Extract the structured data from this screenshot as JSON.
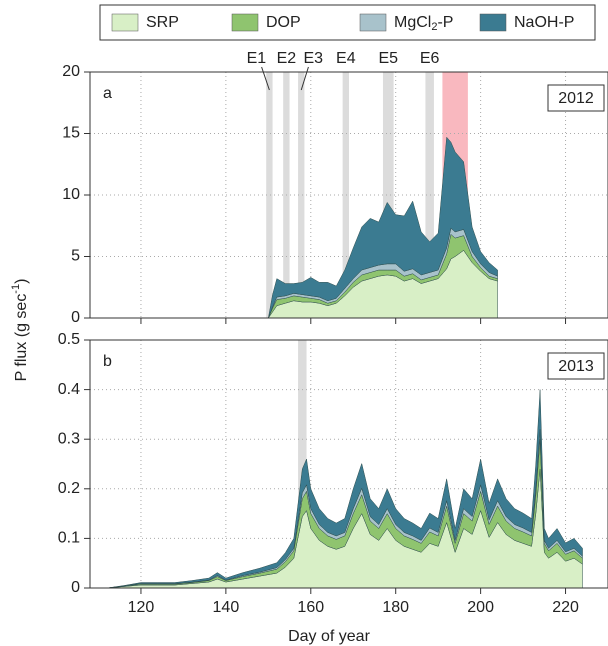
{
  "chart_data": [
    {
      "type": "stacked_area",
      "panel": "a",
      "year": "2012",
      "ylabel": "P flux (g sec-1)",
      "xlim": [
        108,
        230
      ],
      "xticks": [
        120,
        140,
        160,
        180,
        200,
        220
      ],
      "ylim": [
        0,
        20
      ],
      "yticks": [
        0,
        5,
        10,
        15,
        20
      ],
      "grid": true,
      "x": [
        130,
        140,
        150,
        151,
        152,
        154,
        156,
        158,
        160,
        162,
        164,
        166,
        168,
        170,
        172,
        174,
        176,
        178,
        180,
        182,
        184,
        186,
        188,
        190,
        192,
        193,
        194,
        196,
        198,
        200,
        202,
        204
      ],
      "series": [
        {
          "name": "SRP",
          "color": "#d8efc6",
          "values": [
            0,
            0,
            0,
            0.5,
            1,
            1.2,
            1.4,
            1.3,
            1.3,
            1.2,
            1.0,
            1.2,
            1.8,
            2.5,
            3.0,
            3.2,
            3.4,
            3.5,
            3.4,
            3.0,
            3.2,
            2.8,
            3.0,
            3.2,
            4.0,
            4.8,
            5.0,
            5.5,
            4.5,
            3.8,
            3.2,
            3.0
          ]
        },
        {
          "name": "DOP",
          "color": "#8fc46f",
          "values": [
            0,
            0,
            0,
            0.3,
            0.5,
            0.4,
            0.4,
            0.4,
            0.3,
            0.3,
            0.2,
            0.2,
            0.3,
            0.4,
            0.5,
            0.5,
            0.5,
            0.4,
            0.5,
            0.4,
            0.4,
            0.3,
            0.3,
            0.3,
            1.2,
            2.0,
            1.5,
            1.2,
            0.5,
            0.3,
            0.2,
            0.2
          ]
        },
        {
          "name": "MgCl2-P",
          "color": "#a8c2cb",
          "values": [
            0,
            0,
            0,
            0.1,
            0.2,
            0.2,
            0.2,
            0.2,
            0.2,
            0.2,
            0.2,
            0.2,
            0.3,
            0.3,
            0.4,
            0.4,
            0.4,
            0.5,
            0.5,
            0.4,
            0.4,
            0.4,
            0.4,
            0.4,
            0.5,
            0.5,
            0.5,
            0.5,
            0.4,
            0.3,
            0.3,
            0.2
          ]
        },
        {
          "name": "NaOH-P",
          "color": "#3b7b91",
          "values": [
            0,
            0,
            0,
            1.0,
            1.5,
            1.0,
            0.8,
            1.0,
            1.5,
            1.2,
            1.5,
            1.0,
            1.5,
            2.5,
            3.5,
            4.0,
            3.5,
            5.0,
            4.0,
            4.5,
            5.5,
            3.5,
            2.5,
            3.0,
            9.0,
            7.0,
            6.5,
            5.5,
            2.0,
            1.0,
            0.8,
            0.5
          ]
        }
      ],
      "bands": [
        {
          "label": "E1",
          "range": [
            149.5,
            151
          ],
          "color": "#dcdcdc"
        },
        {
          "label": "E2",
          "range": [
            153.5,
            155
          ],
          "color": "#dcdcdc"
        },
        {
          "label": "E3",
          "range": [
            157,
            158.5
          ],
          "color": "#dcdcdc"
        },
        {
          "label": "E4",
          "range": [
            167.5,
            169
          ],
          "color": "#dcdcdc"
        },
        {
          "label": "E5",
          "range": [
            177,
            179.5
          ],
          "color": "#dcdcdc"
        },
        {
          "label": "E6",
          "range": [
            187,
            189
          ],
          "color": "#dcdcdc"
        },
        {
          "range": [
            191,
            197
          ],
          "color": "#f9b8bf"
        }
      ]
    },
    {
      "type": "stacked_area",
      "panel": "b",
      "year": "2013",
      "xlabel": "Day of year",
      "xlim": [
        108,
        230
      ],
      "xticks": [
        120,
        140,
        160,
        180,
        200,
        220
      ],
      "ylim": [
        0,
        0.5
      ],
      "yticks": [
        0,
        0.1,
        0.2,
        0.3,
        0.4,
        0.5
      ],
      "grid": true,
      "x": [
        112,
        116,
        120,
        124,
        128,
        132,
        136,
        138,
        140,
        144,
        148,
        152,
        154,
        156,
        158,
        159,
        160,
        162,
        164,
        166,
        168,
        170,
        172,
        174,
        176,
        178,
        180,
        182,
        184,
        186,
        188,
        190,
        192,
        194,
        196,
        198,
        200,
        202,
        204,
        206,
        208,
        210,
        212,
        213,
        214,
        215,
        216,
        218,
        220,
        222,
        224
      ],
      "series": [
        {
          "color": "#d8efc6",
          "values": [
            0,
            0.003,
            0.006,
            0.006,
            0.006,
            0.009,
            0.012,
            0.018,
            0.012,
            0.018,
            0.024,
            0.03,
            0.042,
            0.06,
            0.144,
            0.156,
            0.12,
            0.096,
            0.084,
            0.078,
            0.084,
            0.12,
            0.15,
            0.108,
            0.096,
            0.12,
            0.096,
            0.084,
            0.078,
            0.072,
            0.09,
            0.084,
            0.132,
            0.072,
            0.12,
            0.108,
            0.156,
            0.102,
            0.132,
            0.108,
            0.096,
            0.09,
            0.084,
            0.15,
            0.24,
            0.072,
            0.06,
            0.072,
            0.054,
            0.06,
            0.048
          ]
        },
        {
          "color": "#8fc46f",
          "values": [
            0,
            0.001,
            0.002,
            0.002,
            0.002,
            0.002,
            0.003,
            0.005,
            0.003,
            0.005,
            0.006,
            0.008,
            0.011,
            0.015,
            0.036,
            0.039,
            0.03,
            0.024,
            0.021,
            0.02,
            0.021,
            0.03,
            0.038,
            0.027,
            0.024,
            0.03,
            0.024,
            0.021,
            0.02,
            0.018,
            0.023,
            0.021,
            0.033,
            0.018,
            0.03,
            0.027,
            0.039,
            0.026,
            0.033,
            0.027,
            0.024,
            0.023,
            0.021,
            0.038,
            0.06,
            0.018,
            0.015,
            0.018,
            0.014,
            0.015,
            0.012
          ]
        },
        {
          "color": "#a8c2cb",
          "values": [
            0,
            0,
            0.001,
            0.001,
            0.001,
            0.001,
            0.001,
            0.002,
            0.001,
            0.002,
            0.002,
            0.003,
            0.004,
            0.005,
            0.012,
            0.013,
            0.01,
            0.008,
            0.007,
            0.007,
            0.007,
            0.01,
            0.013,
            0.009,
            0.008,
            0.01,
            0.008,
            0.007,
            0.007,
            0.006,
            0.008,
            0.007,
            0.011,
            0.006,
            0.01,
            0.009,
            0.013,
            0.009,
            0.011,
            0.009,
            0.008,
            0.008,
            0.007,
            0.013,
            0.02,
            0.006,
            0.005,
            0.006,
            0.005,
            0.005,
            0.004
          ]
        },
        {
          "color": "#3b7b91",
          "values": [
            0,
            0.001,
            0.002,
            0.002,
            0.002,
            0.003,
            0.004,
            0.006,
            0.004,
            0.006,
            0.008,
            0.01,
            0.014,
            0.02,
            0.048,
            0.052,
            0.04,
            0.032,
            0.028,
            0.026,
            0.028,
            0.04,
            0.05,
            0.036,
            0.032,
            0.04,
            0.032,
            0.028,
            0.026,
            0.024,
            0.03,
            0.028,
            0.044,
            0.024,
            0.04,
            0.036,
            0.052,
            0.034,
            0.044,
            0.036,
            0.032,
            0.03,
            0.028,
            0.05,
            0.08,
            0.024,
            0.02,
            0.024,
            0.018,
            0.02,
            0.016
          ]
        }
      ],
      "bands": [
        {
          "range": [
            157,
            159
          ],
          "color": "#dcdcdc"
        }
      ]
    }
  ]
}
